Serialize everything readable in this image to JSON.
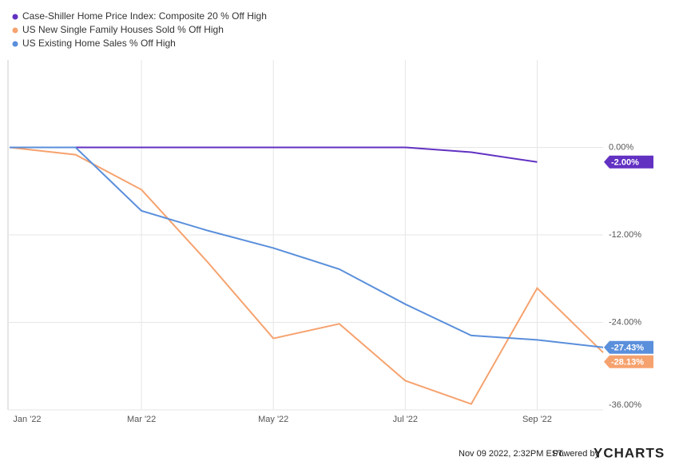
{
  "chart_data": {
    "type": "line",
    "categories": [
      "Jan '22",
      null,
      "Mar '22",
      null,
      "May '22",
      null,
      "Jul '22",
      null,
      "Sep '22",
      null
    ],
    "series": [
      {
        "name": "Case-Shiller Home Price Index: Composite 20 % Off High",
        "color": "#6231c2",
        "values": [
          0,
          0,
          0,
          0,
          0,
          0,
          0,
          -0.66,
          -2.0,
          null
        ],
        "value_labels": [
          null,
          null,
          null,
          null,
          null,
          null,
          null,
          null,
          "-2.00%",
          null
        ]
      },
      {
        "name": "US New Single Family Houses Sold % Off High",
        "color": "#f6a26e",
        "values": [
          0,
          -1.0,
          -5.8,
          -15.7,
          -26.2,
          -24.2,
          -32.0,
          -35.2,
          -19.3,
          -28.13
        ],
        "value_labels": [
          null,
          null,
          null,
          null,
          null,
          null,
          null,
          null,
          null,
          "-28.13%"
        ]
      },
      {
        "name": "US Existing Home Sales % Off High",
        "color": "#5a8fdb",
        "values": [
          0,
          0,
          -8.7,
          -11.4,
          -13.8,
          -16.7,
          -21.5,
          -25.8,
          -26.4,
          -27.43
        ],
        "value_labels": [
          null,
          null,
          null,
          null,
          null,
          null,
          null,
          null,
          null,
          "-27.43%"
        ]
      }
    ],
    "ylim": [
      -36,
      12
    ],
    "yticks": [
      {
        "value": 0,
        "label": "0.00%"
      },
      {
        "value": -12,
        "label": "-12.00%"
      },
      {
        "value": -24,
        "label": "-24.00%"
      },
      {
        "value": -36,
        "label": "-36.00%"
      }
    ],
    "grid": true,
    "legend": "top-left"
  },
  "footer": {
    "timestamp": "Nov 09 2022, 2:32PM EST.",
    "powered_by": "Powered by",
    "brand": "YCHARTS"
  }
}
